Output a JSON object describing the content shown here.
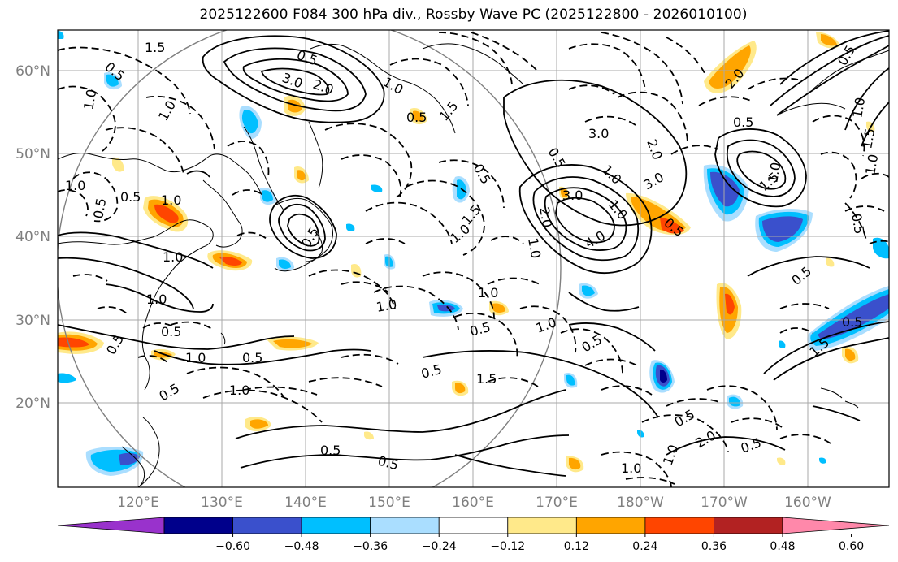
{
  "title": "2025122600 F084 300 hPa div., Rossby Wave PC (2025122800 - 2026010100)",
  "latitude_labels": [
    "60°N",
    "50°N",
    "40°N",
    "30°N",
    "20°N"
  ],
  "longitude_labels": [
    "120°E",
    "130°E",
    "140°E",
    "150°E",
    "160°E",
    "170°E",
    "180°W",
    "170°W",
    "160°W"
  ],
  "colorbar": {
    "tick_labels": [
      "−0.60",
      "−0.48",
      "−0.36",
      "−0.24",
      "−0.12",
      "0.12",
      "0.24",
      "0.36",
      "0.48",
      "0.60"
    ],
    "colors": [
      "#9932cc",
      "#00008b",
      "#3a50cc",
      "#00bfff",
      "#aadeff",
      "#ffffff",
      "#ffe98a",
      "#ffa500",
      "#ff4500",
      "#b22222",
      "#ff88aa"
    ]
  },
  "contour_labels": [
    "1.5",
    "0.5",
    "0.5",
    "3.0",
    "2.0",
    "1.0",
    "1.0",
    "1.0",
    "0.5",
    "1.0",
    "0.5",
    "1.0",
    "1.5",
    "0.5",
    "1.5",
    "1.0",
    "0.5",
    "3.0",
    "2.0",
    "1.0",
    "3.0",
    "2.0",
    "1.0",
    "4.0",
    "3.0",
    "0.5",
    "1.0",
    "0.5",
    "1.0",
    "1.0",
    "0.5",
    "0.5",
    "1.0",
    "0.5",
    "0.5",
    "1.0",
    "0.5",
    "1.0",
    "0.5",
    "1.0",
    "1.0",
    "0.5",
    "1.5",
    "0.5",
    "0.5",
    "1.0",
    "0.5",
    "1.0",
    "0.5",
    "2.0",
    "1.5",
    "0.5",
    "1.0",
    "1.0",
    "1.5",
    "1.0",
    "0.5",
    "0.5",
    "1.5",
    "0.5",
    "0.5",
    "0.5",
    "2.0"
  ]
}
